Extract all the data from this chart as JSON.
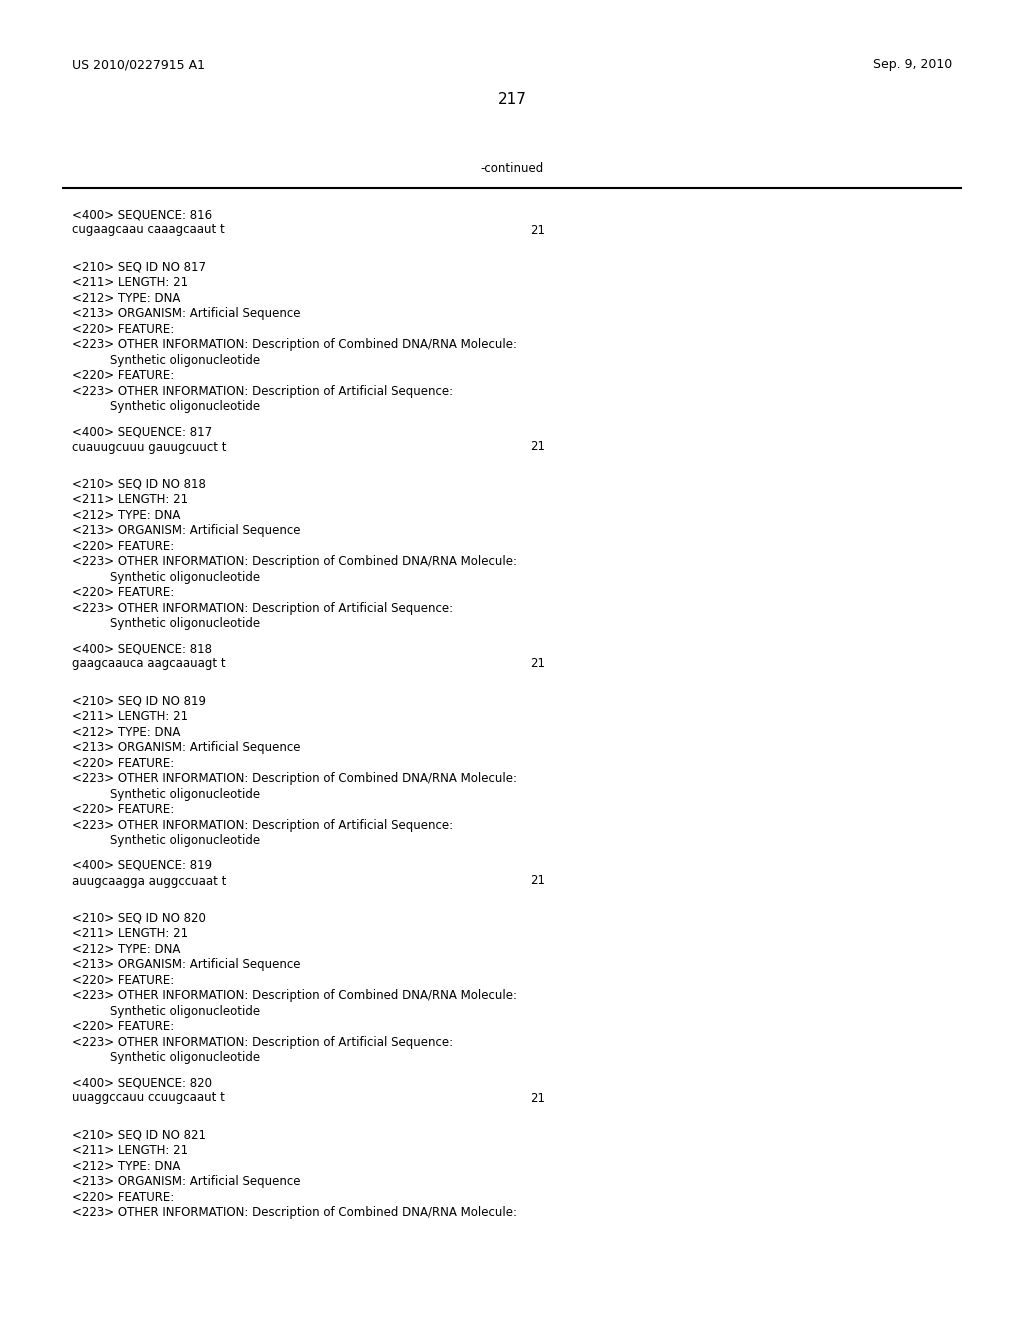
{
  "background_color": "#ffffff",
  "header_left": "US 2010/0227915 A1",
  "header_right": "Sep. 9, 2010",
  "page_number": "217",
  "continued_label": "-continued",
  "content": [
    {
      "type": "seq400",
      "text": "<400> SEQUENCE: 816"
    },
    {
      "type": "sequence",
      "text": "cugaagcaau caaagcaaut t",
      "num": "21"
    },
    {
      "type": "blank2"
    },
    {
      "type": "seq210",
      "text": "<210> SEQ ID NO 817"
    },
    {
      "type": "seq211",
      "text": "<211> LENGTH: 21"
    },
    {
      "type": "seq212",
      "text": "<212> TYPE: DNA"
    },
    {
      "type": "seq213",
      "text": "<213> ORGANISM: Artificial Sequence"
    },
    {
      "type": "seq220",
      "text": "<220> FEATURE:"
    },
    {
      "type": "seq223",
      "text": "<223> OTHER INFORMATION: Description of Combined DNA/RNA Molecule:"
    },
    {
      "type": "cont",
      "text": "     Synthetic oligonucleotide"
    },
    {
      "type": "seq220",
      "text": "<220> FEATURE:"
    },
    {
      "type": "seq223",
      "text": "<223> OTHER INFORMATION: Description of Artificial Sequence:"
    },
    {
      "type": "cont",
      "text": "     Synthetic oligonucleotide"
    },
    {
      "type": "blank1"
    },
    {
      "type": "seq400",
      "text": "<400> SEQUENCE: 817"
    },
    {
      "type": "sequence",
      "text": "cuauugcuuu gauugcuuct t",
      "num": "21"
    },
    {
      "type": "blank2"
    },
    {
      "type": "seq210",
      "text": "<210> SEQ ID NO 818"
    },
    {
      "type": "seq211",
      "text": "<211> LENGTH: 21"
    },
    {
      "type": "seq212",
      "text": "<212> TYPE: DNA"
    },
    {
      "type": "seq213",
      "text": "<213> ORGANISM: Artificial Sequence"
    },
    {
      "type": "seq220",
      "text": "<220> FEATURE:"
    },
    {
      "type": "seq223",
      "text": "<223> OTHER INFORMATION: Description of Combined DNA/RNA Molecule:"
    },
    {
      "type": "cont",
      "text": "     Synthetic oligonucleotide"
    },
    {
      "type": "seq220",
      "text": "<220> FEATURE:"
    },
    {
      "type": "seq223",
      "text": "<223> OTHER INFORMATION: Description of Artificial Sequence:"
    },
    {
      "type": "cont",
      "text": "     Synthetic oligonucleotide"
    },
    {
      "type": "blank1"
    },
    {
      "type": "seq400",
      "text": "<400> SEQUENCE: 818"
    },
    {
      "type": "sequence",
      "text": "gaagcaauca aagcaauagt t",
      "num": "21"
    },
    {
      "type": "blank2"
    },
    {
      "type": "seq210",
      "text": "<210> SEQ ID NO 819"
    },
    {
      "type": "seq211",
      "text": "<211> LENGTH: 21"
    },
    {
      "type": "seq212",
      "text": "<212> TYPE: DNA"
    },
    {
      "type": "seq213",
      "text": "<213> ORGANISM: Artificial Sequence"
    },
    {
      "type": "seq220",
      "text": "<220> FEATURE:"
    },
    {
      "type": "seq223",
      "text": "<223> OTHER INFORMATION: Description of Combined DNA/RNA Molecule:"
    },
    {
      "type": "cont",
      "text": "     Synthetic oligonucleotide"
    },
    {
      "type": "seq220",
      "text": "<220> FEATURE:"
    },
    {
      "type": "seq223",
      "text": "<223> OTHER INFORMATION: Description of Artificial Sequence:"
    },
    {
      "type": "cont",
      "text": "     Synthetic oligonucleotide"
    },
    {
      "type": "blank1"
    },
    {
      "type": "seq400",
      "text": "<400> SEQUENCE: 819"
    },
    {
      "type": "sequence",
      "text": "auugcaagga auggccuaat t",
      "num": "21"
    },
    {
      "type": "blank2"
    },
    {
      "type": "seq210",
      "text": "<210> SEQ ID NO 820"
    },
    {
      "type": "seq211",
      "text": "<211> LENGTH: 21"
    },
    {
      "type": "seq212",
      "text": "<212> TYPE: DNA"
    },
    {
      "type": "seq213",
      "text": "<213> ORGANISM: Artificial Sequence"
    },
    {
      "type": "seq220",
      "text": "<220> FEATURE:"
    },
    {
      "type": "seq223",
      "text": "<223> OTHER INFORMATION: Description of Combined DNA/RNA Molecule:"
    },
    {
      "type": "cont",
      "text": "     Synthetic oligonucleotide"
    },
    {
      "type": "seq220",
      "text": "<220> FEATURE:"
    },
    {
      "type": "seq223",
      "text": "<223> OTHER INFORMATION: Description of Artificial Sequence:"
    },
    {
      "type": "cont",
      "text": "     Synthetic oligonucleotide"
    },
    {
      "type": "blank1"
    },
    {
      "type": "seq400",
      "text": "<400> SEQUENCE: 820"
    },
    {
      "type": "sequence",
      "text": "uuaggccauu ccuugcaaut t",
      "num": "21"
    },
    {
      "type": "blank2"
    },
    {
      "type": "seq210",
      "text": "<210> SEQ ID NO 821"
    },
    {
      "type": "seq211",
      "text": "<211> LENGTH: 21"
    },
    {
      "type": "seq212",
      "text": "<212> TYPE: DNA"
    },
    {
      "type": "seq213",
      "text": "<213> ORGANISM: Artificial Sequence"
    },
    {
      "type": "seq220",
      "text": "<220> FEATURE:"
    },
    {
      "type": "seq223",
      "text": "<223> OTHER INFORMATION: Description of Combined DNA/RNA Molecule:"
    }
  ]
}
